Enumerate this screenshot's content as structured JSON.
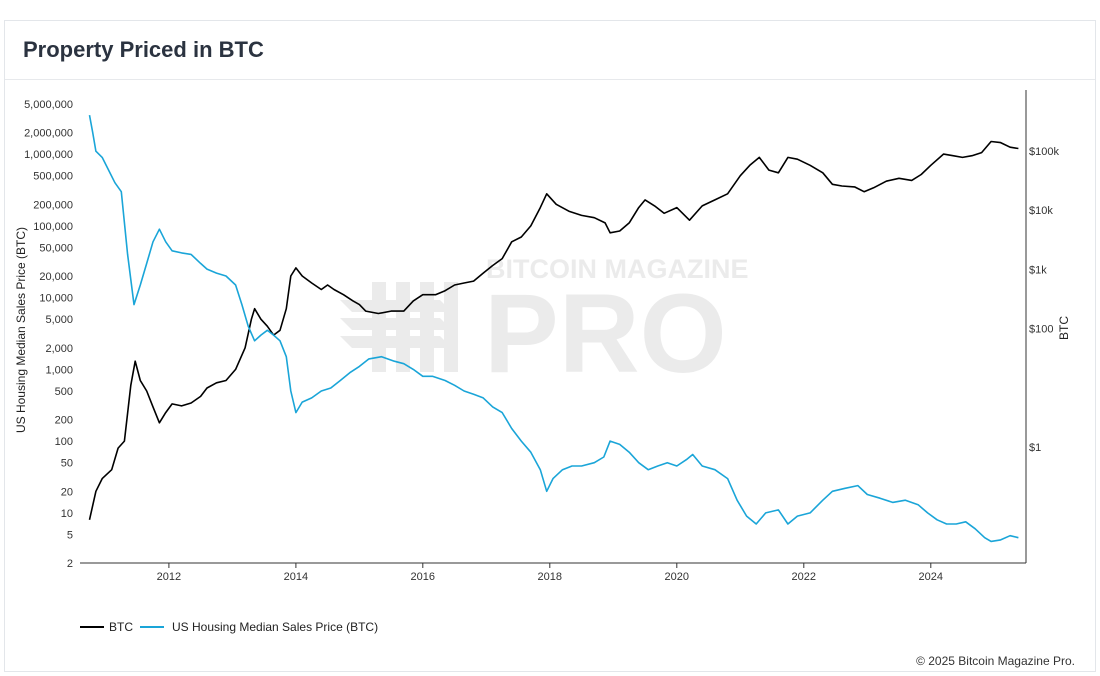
{
  "page": {
    "title": "Property Priced in BTC",
    "copyright": "© 2025 Bitcoin Magazine Pro."
  },
  "watermark": {
    "line1": "BITCOIN MAGAZINE",
    "line2": "PRO"
  },
  "chart_data": {
    "type": "line",
    "title": "Property Priced in BTC",
    "xlabel": "",
    "ylabel_left": "US Housing Median Sales Price (BTC)",
    "ylabel_right": "BTC",
    "x_range": [
      2010.6,
      2025.5
    ],
    "x_ticks": [
      2012,
      2014,
      2016,
      2018,
      2020,
      2022,
      2024
    ],
    "y_left": {
      "scale": "log",
      "range": [
        2,
        5000000
      ],
      "ticks": [
        5000000,
        2000000,
        1000000,
        500000,
        200000,
        100000,
        50000,
        20000,
        10000,
        5000,
        2000,
        1000,
        500,
        200,
        100,
        50,
        20,
        10,
        5,
        2
      ],
      "tick_labels": [
        "5,000,000",
        "2,000,000",
        "1,000,000",
        "500,000",
        "200,000",
        "100,000",
        "50,000",
        "20,000",
        "10,000",
        "5,000",
        "2,000",
        "1,000",
        "500",
        "200",
        "100",
        "50",
        "20",
        "10",
        "5",
        "2"
      ]
    },
    "y_right": {
      "scale": "log",
      "ticks": [
        100000,
        10000,
        1000,
        100,
        1
      ],
      "tick_labels": [
        "$100k",
        "$10k",
        "$1k",
        "$100",
        "$1"
      ]
    },
    "grid": false,
    "legend_position": "bottom-left",
    "series": [
      {
        "name": "BTC",
        "color": "#000000",
        "axis": "left",
        "points": [
          [
            2010.75,
            8
          ],
          [
            2010.85,
            20
          ],
          [
            2010.95,
            30
          ],
          [
            2011.1,
            40
          ],
          [
            2011.2,
            80
          ],
          [
            2011.3,
            100
          ],
          [
            2011.4,
            600
          ],
          [
            2011.47,
            1300
          ],
          [
            2011.55,
            700
          ],
          [
            2011.65,
            500
          ],
          [
            2011.75,
            300
          ],
          [
            2011.85,
            180
          ],
          [
            2011.95,
            250
          ],
          [
            2012.05,
            330
          ],
          [
            2012.2,
            310
          ],
          [
            2012.35,
            340
          ],
          [
            2012.5,
            420
          ],
          [
            2012.6,
            550
          ],
          [
            2012.75,
            650
          ],
          [
            2012.9,
            700
          ],
          [
            2013.05,
            1000
          ],
          [
            2013.2,
            2000
          ],
          [
            2013.3,
            5000
          ],
          [
            2013.35,
            7000
          ],
          [
            2013.45,
            5000
          ],
          [
            2013.55,
            4000
          ],
          [
            2013.65,
            3000
          ],
          [
            2013.75,
            3500
          ],
          [
            2013.85,
            7000
          ],
          [
            2013.92,
            20000
          ],
          [
            2014.0,
            26000
          ],
          [
            2014.1,
            20000
          ],
          [
            2014.25,
            16000
          ],
          [
            2014.4,
            13000
          ],
          [
            2014.5,
            15000
          ],
          [
            2014.6,
            13000
          ],
          [
            2014.75,
            11000
          ],
          [
            2014.9,
            9000
          ],
          [
            2015.0,
            8000
          ],
          [
            2015.1,
            6500
          ],
          [
            2015.3,
            6000
          ],
          [
            2015.5,
            6500
          ],
          [
            2015.7,
            6500
          ],
          [
            2015.85,
            9000
          ],
          [
            2016.0,
            11000
          ],
          [
            2016.2,
            11000
          ],
          [
            2016.35,
            12500
          ],
          [
            2016.5,
            15000
          ],
          [
            2016.65,
            16000
          ],
          [
            2016.8,
            17000
          ],
          [
            2016.95,
            22000
          ],
          [
            2017.1,
            28000
          ],
          [
            2017.25,
            35000
          ],
          [
            2017.4,
            60000
          ],
          [
            2017.55,
            70000
          ],
          [
            2017.7,
            100000
          ],
          [
            2017.85,
            180000
          ],
          [
            2017.95,
            280000
          ],
          [
            2018.1,
            200000
          ],
          [
            2018.3,
            160000
          ],
          [
            2018.5,
            140000
          ],
          [
            2018.7,
            130000
          ],
          [
            2018.87,
            110000
          ],
          [
            2018.95,
            80000
          ],
          [
            2019.1,
            85000
          ],
          [
            2019.25,
            110000
          ],
          [
            2019.4,
            180000
          ],
          [
            2019.5,
            230000
          ],
          [
            2019.65,
            190000
          ],
          [
            2019.8,
            150000
          ],
          [
            2020.0,
            180000
          ],
          [
            2020.2,
            120000
          ],
          [
            2020.4,
            190000
          ],
          [
            2020.6,
            230000
          ],
          [
            2020.8,
            280000
          ],
          [
            2021.0,
            500000
          ],
          [
            2021.15,
            700000
          ],
          [
            2021.3,
            900000
          ],
          [
            2021.45,
            600000
          ],
          [
            2021.6,
            550000
          ],
          [
            2021.75,
            900000
          ],
          [
            2021.9,
            850000
          ],
          [
            2022.1,
            700000
          ],
          [
            2022.3,
            550000
          ],
          [
            2022.45,
            380000
          ],
          [
            2022.6,
            360000
          ],
          [
            2022.8,
            350000
          ],
          [
            2022.95,
            300000
          ],
          [
            2023.1,
            340000
          ],
          [
            2023.3,
            420000
          ],
          [
            2023.5,
            460000
          ],
          [
            2023.7,
            430000
          ],
          [
            2023.85,
            520000
          ],
          [
            2024.0,
            700000
          ],
          [
            2024.2,
            1000000
          ],
          [
            2024.35,
            950000
          ],
          [
            2024.5,
            900000
          ],
          [
            2024.65,
            950000
          ],
          [
            2024.8,
            1050000
          ],
          [
            2024.95,
            1500000
          ],
          [
            2025.1,
            1450000
          ],
          [
            2025.25,
            1250000
          ],
          [
            2025.38,
            1200000
          ]
        ]
      },
      {
        "name": "US Housing Median Sales Price (BTC)",
        "color": "#1aa5d8",
        "axis": "left",
        "points": [
          [
            2010.75,
            3500000
          ],
          [
            2010.8,
            2000000
          ],
          [
            2010.85,
            1100000
          ],
          [
            2010.95,
            900000
          ],
          [
            2011.05,
            600000
          ],
          [
            2011.15,
            400000
          ],
          [
            2011.25,
            300000
          ],
          [
            2011.35,
            40000
          ],
          [
            2011.45,
            8000
          ],
          [
            2011.55,
            15000
          ],
          [
            2011.65,
            30000
          ],
          [
            2011.75,
            60000
          ],
          [
            2011.85,
            90000
          ],
          [
            2011.95,
            60000
          ],
          [
            2012.05,
            45000
          ],
          [
            2012.2,
            42000
          ],
          [
            2012.35,
            40000
          ],
          [
            2012.5,
            30000
          ],
          [
            2012.6,
            25000
          ],
          [
            2012.75,
            22000
          ],
          [
            2012.9,
            20000
          ],
          [
            2013.05,
            15000
          ],
          [
            2013.15,
            8000
          ],
          [
            2013.25,
            4000
          ],
          [
            2013.35,
            2500
          ],
          [
            2013.45,
            3000
          ],
          [
            2013.55,
            3500
          ],
          [
            2013.65,
            3000
          ],
          [
            2013.75,
            2500
          ],
          [
            2013.85,
            1500
          ],
          [
            2013.92,
            500
          ],
          [
            2014.0,
            250
          ],
          [
            2014.1,
            350
          ],
          [
            2014.25,
            400
          ],
          [
            2014.4,
            500
          ],
          [
            2014.55,
            550
          ],
          [
            2014.7,
            700
          ],
          [
            2014.85,
            900
          ],
          [
            2015.0,
            1100
          ],
          [
            2015.15,
            1400
          ],
          [
            2015.35,
            1500
          ],
          [
            2015.55,
            1300
          ],
          [
            2015.7,
            1200
          ],
          [
            2015.85,
            1000
          ],
          [
            2016.0,
            800
          ],
          [
            2016.15,
            800
          ],
          [
            2016.35,
            700
          ],
          [
            2016.5,
            600
          ],
          [
            2016.65,
            500
          ],
          [
            2016.8,
            450
          ],
          [
            2016.95,
            400
          ],
          [
            2017.1,
            300
          ],
          [
            2017.25,
            250
          ],
          [
            2017.4,
            150
          ],
          [
            2017.55,
            100
          ],
          [
            2017.7,
            70
          ],
          [
            2017.85,
            40
          ],
          [
            2017.95,
            20
          ],
          [
            2018.05,
            30
          ],
          [
            2018.2,
            40
          ],
          [
            2018.35,
            45
          ],
          [
            2018.5,
            45
          ],
          [
            2018.7,
            50
          ],
          [
            2018.85,
            60
          ],
          [
            2018.95,
            100
          ],
          [
            2019.1,
            90
          ],
          [
            2019.25,
            70
          ],
          [
            2019.4,
            50
          ],
          [
            2019.55,
            40
          ],
          [
            2019.7,
            45
          ],
          [
            2019.85,
            50
          ],
          [
            2020.0,
            45
          ],
          [
            2020.15,
            55
          ],
          [
            2020.25,
            65
          ],
          [
            2020.4,
            45
          ],
          [
            2020.6,
            40
          ],
          [
            2020.8,
            30
          ],
          [
            2020.95,
            15
          ],
          [
            2021.1,
            9
          ],
          [
            2021.25,
            7
          ],
          [
            2021.4,
            10
          ],
          [
            2021.6,
            11
          ],
          [
            2021.75,
            7
          ],
          [
            2021.9,
            9
          ],
          [
            2022.1,
            10
          ],
          [
            2022.3,
            15
          ],
          [
            2022.45,
            20
          ],
          [
            2022.65,
            22
          ],
          [
            2022.85,
            24
          ],
          [
            2023.0,
            18
          ],
          [
            2023.2,
            16
          ],
          [
            2023.4,
            14
          ],
          [
            2023.6,
            15
          ],
          [
            2023.8,
            13
          ],
          [
            2023.95,
            10
          ],
          [
            2024.1,
            8
          ],
          [
            2024.25,
            7
          ],
          [
            2024.4,
            7
          ],
          [
            2024.55,
            7.5
          ],
          [
            2024.7,
            6
          ],
          [
            2024.85,
            4.5
          ],
          [
            2024.95,
            4
          ],
          [
            2025.1,
            4.2
          ],
          [
            2025.25,
            4.8
          ],
          [
            2025.38,
            4.5
          ]
        ]
      }
    ]
  }
}
